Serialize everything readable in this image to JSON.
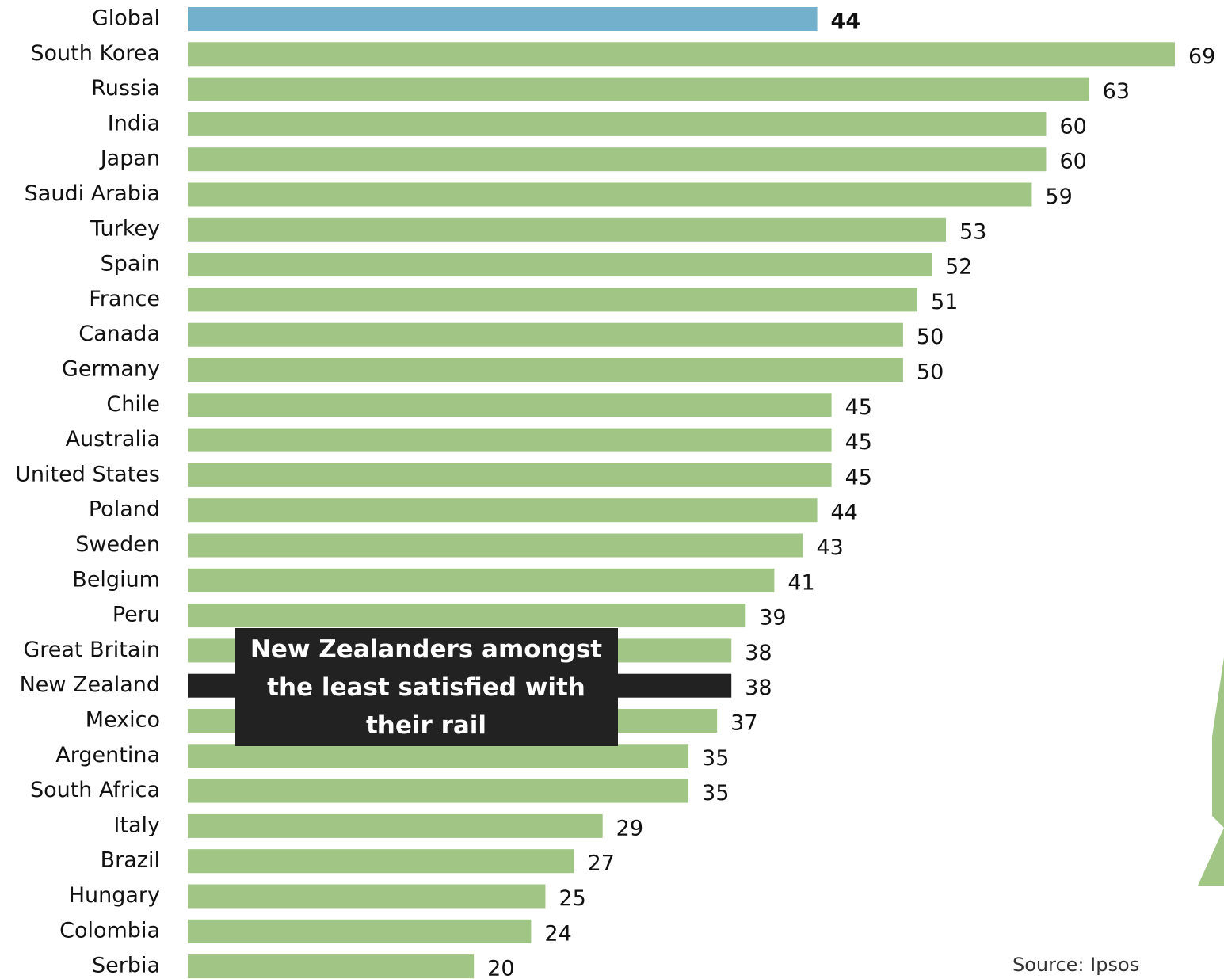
{
  "chart_data": {
    "type": "bar",
    "orientation": "horizontal",
    "categories": [
      "Global",
      "South Korea",
      "Russia",
      "India",
      "Japan",
      "Saudi Arabia",
      "Turkey",
      "Spain",
      "France",
      "Canada",
      "Germany",
      "Chile",
      "Australia",
      "United States",
      "Poland",
      "Sweden",
      "Belgium",
      "Peru",
      "Great Britain",
      "New Zealand",
      "Mexico",
      "Argentina",
      "South Africa",
      "Italy",
      "Brazil",
      "Hungary",
      "Colombia",
      "Serbia"
    ],
    "values": [
      44,
      69,
      63,
      60,
      60,
      59,
      53,
      52,
      51,
      50,
      50,
      45,
      45,
      45,
      44,
      43,
      41,
      39,
      38,
      38,
      37,
      35,
      35,
      29,
      27,
      25,
      24,
      20
    ],
    "colors": [
      "#72b0cb",
      "#a0c585",
      "#a0c585",
      "#a0c585",
      "#a0c585",
      "#a0c585",
      "#a0c585",
      "#a0c585",
      "#a0c585",
      "#a0c585",
      "#a0c585",
      "#a0c585",
      "#a0c585",
      "#a0c585",
      "#a0c585",
      "#a0c585",
      "#a0c585",
      "#a0c585",
      "#a0c585",
      "#222222",
      "#a0c585",
      "#a0c585",
      "#a0c585",
      "#a0c585",
      "#a0c585",
      "#a0c585",
      "#a0c585",
      "#a0c585"
    ],
    "annotation": "New Zealanders amongst the least satisfied with their rail",
    "source": "Source: Ipsos"
  }
}
